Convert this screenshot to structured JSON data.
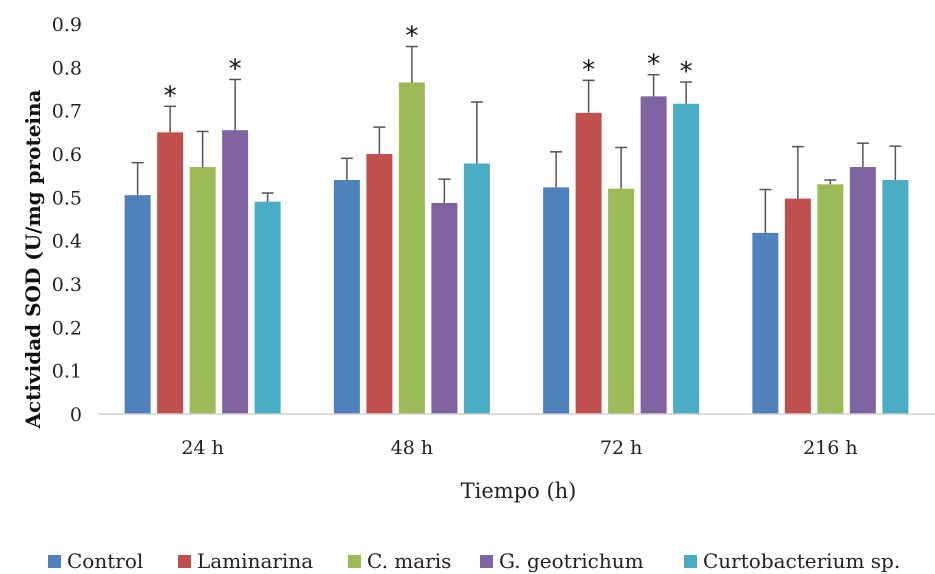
{
  "chart_data": {
    "type": "bar",
    "title": "",
    "xlabel": "Tiempo (h)",
    "ylabel": "Actividad SOD (U/mg proteina",
    "ylim": [
      0,
      0.9
    ],
    "yticks": [
      "0",
      "0.1",
      "0.2",
      "0.3",
      "0.4",
      "0.5",
      "0.6",
      "0.7",
      "0.8",
      "0.9"
    ],
    "categories": [
      "24 h",
      "48 h",
      "72 h",
      "216 h"
    ],
    "grid": false,
    "legend_position": "bottom",
    "significance_marker": "*",
    "series": [
      {
        "name": "Control",
        "color": "#4F81BD",
        "values": [
          0.505,
          0.54,
          0.523,
          0.418
        ],
        "errors": [
          0.075,
          0.05,
          0.082,
          0.1
        ],
        "significant": [
          false,
          false,
          false,
          false
        ]
      },
      {
        "name": "Laminarina",
        "color": "#C0504D",
        "values": [
          0.65,
          0.6,
          0.695,
          0.497
        ],
        "errors": [
          0.06,
          0.062,
          0.075,
          0.12
        ],
        "significant": [
          true,
          false,
          true,
          false
        ]
      },
      {
        "name": "C. maris",
        "color": "#9BBB59",
        "values": [
          0.57,
          0.765,
          0.52,
          0.53
        ],
        "errors": [
          0.082,
          0.083,
          0.095,
          0.01
        ],
        "significant": [
          false,
          true,
          false,
          false
        ]
      },
      {
        "name": "G. geotrichum",
        "color": "#8064A2",
        "values": [
          0.655,
          0.487,
          0.733,
          0.57
        ],
        "errors": [
          0.117,
          0.055,
          0.05,
          0.055
        ],
        "significant": [
          true,
          false,
          true,
          false
        ]
      },
      {
        "name": "Curtobacterium sp.",
        "color": "#4BACC6",
        "values": [
          0.49,
          0.578,
          0.716,
          0.54
        ],
        "errors": [
          0.02,
          0.142,
          0.05,
          0.078
        ],
        "significant": [
          false,
          false,
          true,
          false
        ]
      }
    ]
  }
}
